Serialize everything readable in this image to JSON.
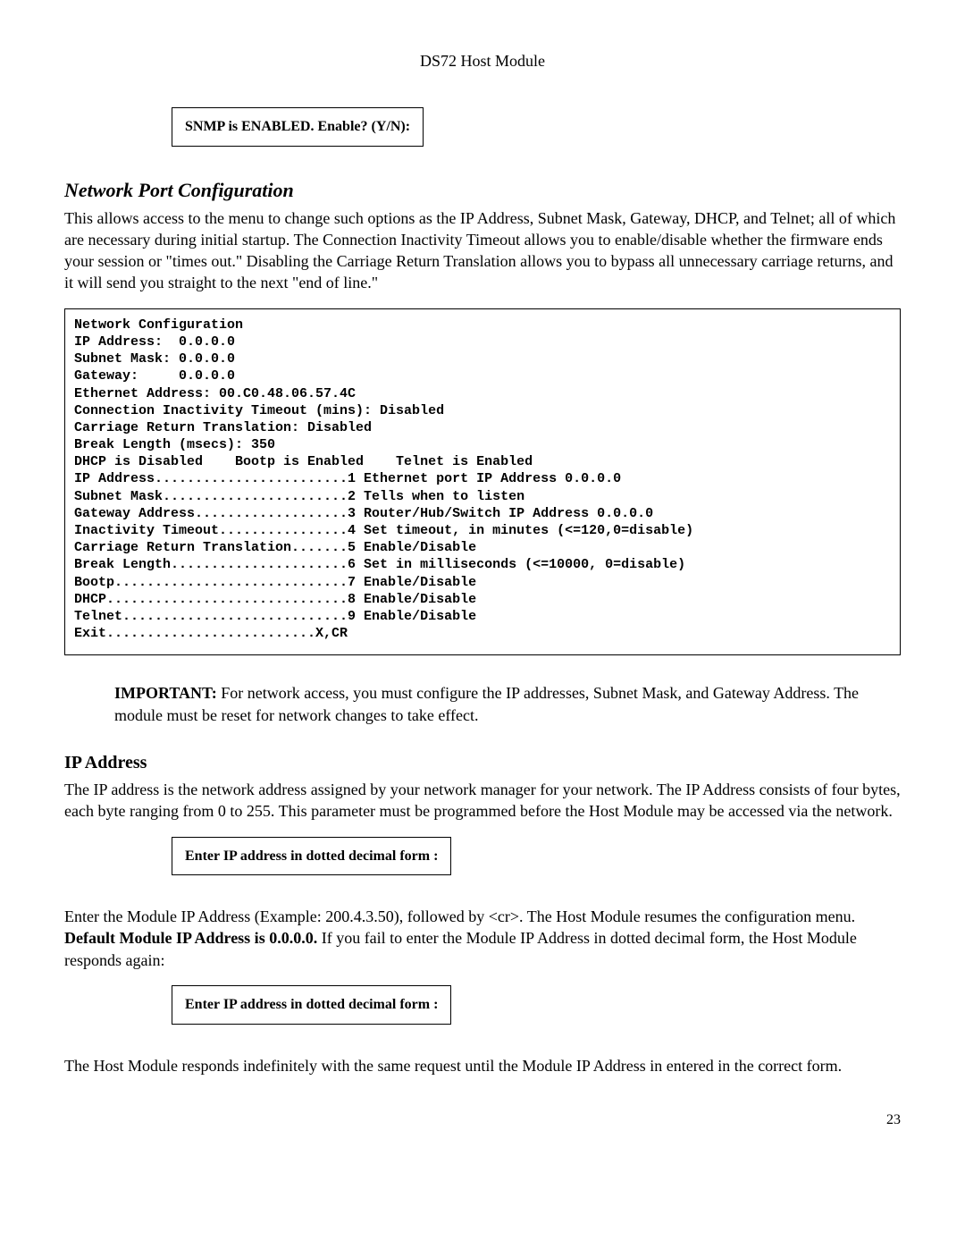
{
  "header": {
    "title": "DS72 Host Module"
  },
  "box1": {
    "text": "SNMP is ENABLED.  Enable? (Y/N):"
  },
  "section1": {
    "title": "Network Port Configuration",
    "para": "This allows access to the menu to change such options as the IP Address, Subnet Mask, Gateway, DHCP, and Telnet; all of which are necessary during initial startup.  The Connection Inactivity Timeout allows you to enable/disable whether the firmware ends your session or \"times out.\" Disabling the Carriage Return Translation allows you to bypass all unnecessary carriage returns, and it will send you straight to the next \"end of line.\""
  },
  "config": {
    "text": "Network Configuration\nIP Address:  0.0.0.0\nSubnet Mask: 0.0.0.0\nGateway:     0.0.0.0\nEthernet Address: 00.C0.48.06.57.4C\nConnection Inactivity Timeout (mins): Disabled\nCarriage Return Translation: Disabled\nBreak Length (msecs): 350\nDHCP is Disabled    Bootp is Enabled    Telnet is Enabled\nIP Address........................1 Ethernet port IP Address 0.0.0.0\nSubnet Mask.......................2 Tells when to listen\nGateway Address...................3 Router/Hub/Switch IP Address 0.0.0.0\nInactivity Timeout................4 Set timeout, in minutes (<=120,0=disable)\nCarriage Return Translation.......5 Enable/Disable\nBreak Length......................6 Set in milliseconds (<=10000, 0=disable)\nBootp.............................7 Enable/Disable\nDHCP..............................8 Enable/Disable\nTelnet............................9 Enable/Disable\nExit..........................X,CR"
  },
  "important": {
    "label": "IMPORTANT:",
    "text": " For network access, you must configure the IP addresses, Subnet Mask, and Gateway Address. The module must be reset for network changes to take effect."
  },
  "section2": {
    "title": "IP Address",
    "para1": "The IP address is the network address assigned by your network manager for your network.  The IP Address consists of four bytes, each byte ranging from 0 to 255. This parameter must be programmed before the Host Module may be accessed via the network.",
    "box2": "Enter IP address in dotted decimal form :",
    "para2_pre": "Enter the Module IP Address (Example: 200.4.3.50), followed by <cr>.  The Host Module resumes the configuration menu.  ",
    "para2_bold": "Default Module IP Address is 0.0.0.0.",
    "para2_post": "  If you fail to enter the Module IP Address in dotted decimal form, the Host Module responds again:",
    "box3": "Enter IP address in dotted decimal form :",
    "para3": "The Host Module responds indefinitely with the same request until the Module IP Address in entered in the correct form."
  },
  "page": {
    "num": "23"
  }
}
